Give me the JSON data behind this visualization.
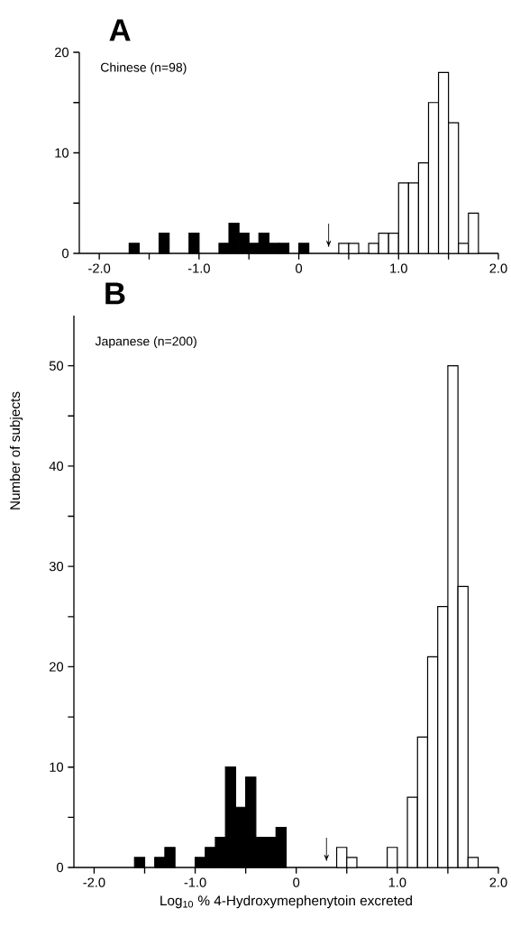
{
  "chart_data": [
    {
      "type": "histogram",
      "title": "A",
      "subtitle": "Chinese (n=98)",
      "bins": [
        -2.0,
        -1.9,
        -1.8,
        -1.7,
        -1.6,
        -1.5,
        -1.4,
        -1.3,
        -1.2,
        -1.1,
        -1.0,
        -0.9,
        -0.8,
        -0.7,
        -0.6,
        -0.5,
        -0.4,
        -0.3,
        -0.2,
        -0.1,
        0.0,
        0.1,
        0.2,
        0.3,
        0.4,
        0.5,
        0.6,
        0.7,
        0.8,
        0.9,
        1.0,
        1.1,
        1.2,
        1.3,
        1.4,
        1.5,
        1.6,
        1.7,
        1.8,
        1.9,
        2.0
      ],
      "series": [
        {
          "color": "#000000",
          "values": [
            null,
            null,
            null,
            1,
            null,
            null,
            2,
            null,
            null,
            2,
            null,
            null,
            1,
            3,
            2,
            1,
            2,
            1,
            1,
            null,
            1,
            null,
            null,
            null,
            null,
            null,
            null,
            null,
            null,
            null,
            null,
            null,
            null,
            null,
            null,
            null,
            null,
            null,
            null,
            null
          ]
        },
        {
          "color": "#ffffff",
          "values": [
            null,
            null,
            null,
            null,
            null,
            null,
            null,
            null,
            null,
            null,
            null,
            null,
            null,
            null,
            null,
            null,
            null,
            null,
            null,
            null,
            null,
            null,
            null,
            null,
            1,
            1,
            null,
            1,
            2,
            2,
            7,
            7,
            9,
            15,
            18,
            13,
            1,
            4,
            null,
            null
          ]
        }
      ],
      "xlim": [
        -2.2,
        2.0
      ],
      "ylim": [
        0,
        20
      ],
      "xticks": [
        {
          "value": -2.0,
          "label": "-2.0"
        },
        {
          "value": -1.5,
          "label": null
        },
        {
          "value": -1.0,
          "label": "-1.0"
        },
        {
          "value": -0.5,
          "label": null
        },
        0,
        {
          "value": 0.5,
          "label": null
        },
        {
          "value": 1.0,
          "label": "1.0"
        },
        {
          "value": 1.5,
          "label": null
        },
        {
          "value": 2.0,
          "label": "2.0"
        }
      ],
      "yticks": [
        0,
        {
          "value": 5,
          "label": null
        },
        10,
        {
          "value": 15,
          "label": null
        },
        20
      ],
      "annotations": [
        "↓"
      ]
    },
    {
      "type": "histogram",
      "title": "B",
      "subtitle": "Japanese (n=200)",
      "ylabel": "Number of subjects",
      "xlabel": "Log$_{10}$ % 4-Hydroxymephenytoin excreted",
      "bins": [
        -2.0,
        -1.9,
        -1.8,
        -1.7,
        -1.6,
        -1.5,
        -1.4,
        -1.3,
        -1.2,
        -1.1,
        -1.0,
        -0.9,
        -0.8,
        -0.7,
        -0.6,
        -0.5,
        -0.4,
        -0.3,
        -0.2,
        -0.1,
        0.0,
        0.1,
        0.2,
        0.3,
        0.4,
        0.5,
        0.6,
        0.7,
        0.8,
        0.9,
        1.0,
        1.1,
        1.2,
        1.3,
        1.4,
        1.5,
        1.6,
        1.7,
        1.8,
        1.9,
        2.0
      ],
      "series": [
        {
          "color": "#000000",
          "values": [
            null,
            null,
            null,
            null,
            1,
            null,
            1,
            2,
            null,
            null,
            1,
            2,
            3,
            10,
            6,
            9,
            3,
            3,
            4,
            null,
            null,
            null,
            null,
            null,
            null,
            null,
            null,
            null,
            null,
            null,
            null,
            null,
            null,
            null,
            null,
            null,
            null,
            null,
            null,
            null
          ]
        },
        {
          "color": "#ffffff",
          "values": [
            null,
            null,
            null,
            null,
            null,
            null,
            null,
            null,
            null,
            null,
            null,
            null,
            null,
            null,
            null,
            null,
            null,
            null,
            null,
            null,
            null,
            null,
            null,
            null,
            2,
            1,
            null,
            null,
            null,
            2,
            null,
            7,
            13,
            21,
            26,
            50,
            28,
            1,
            null,
            null
          ]
        }
      ],
      "xlim": [
        -2.2,
        2.0
      ],
      "ylim": [
        0,
        55
      ],
      "xticks": [
        {
          "value": -2.0,
          "label": "-2.0"
        },
        {
          "value": -1.5,
          "label": null
        },
        {
          "value": -1.0,
          "label": "-1.0"
        },
        {
          "value": -0.5,
          "label": null
        },
        0,
        {
          "value": 0.5,
          "label": null
        },
        {
          "value": 1.0,
          "label": "1.0"
        },
        {
          "value": 1.5,
          "label": null
        },
        {
          "value": 2.0,
          "label": "2.0"
        }
      ],
      "yticks": [
        0,
        {
          "value": 5,
          "label": null
        },
        10,
        {
          "value": 15,
          "label": null
        },
        20,
        {
          "value": 25,
          "label": null
        },
        30,
        {
          "value": 35,
          "label": null
        },
        40,
        {
          "value": 45,
          "label": null
        },
        50
      ],
      "annotations": [
        "↓"
      ]
    }
  ]
}
